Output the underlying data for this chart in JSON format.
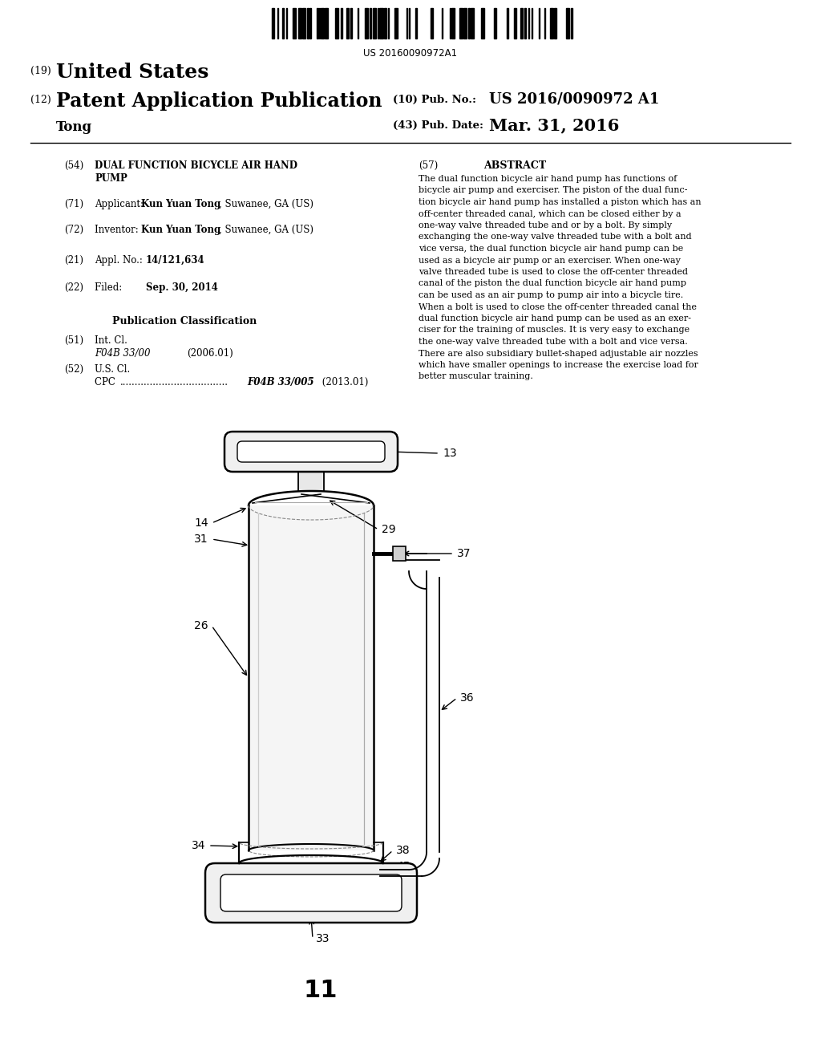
{
  "bg_color": "#ffffff",
  "line_color": "#000000",
  "barcode_text": "US 20160090972A1",
  "abstract_lines": [
    "The dual function bicycle air hand pump has functions of",
    "bicycle air pump and exerciser. The piston of the dual func-",
    "tion bicycle air hand pump has installed a piston which has an",
    "off-center threaded canal, which can be closed either by a",
    "one-way valve threaded tube and or by a bolt. By simply",
    "exchanging the one-way valve threaded tube with a bolt and",
    "vice versa, the dual function bicycle air hand pump can be",
    "used as a bicycle air pump or an exerciser. When one-way",
    "valve threaded tube is used to close the off-center threaded",
    "canal of the piston the dual function bicycle air hand pump",
    "can be used as an air pump to pump air into a bicycle tire.",
    "When a bolt is used to close the off-center threaded canal the",
    "dual function bicycle air hand pump can be used as an exer-",
    "ciser for the training of muscles. It is very easy to exchange",
    "the one-way valve threaded tube with a bolt and vice versa.",
    "There are also subsidiary bullet-shaped adjustable air nozzles",
    "which have smaller openings to increase the exercise load for",
    "better muscular training."
  ]
}
